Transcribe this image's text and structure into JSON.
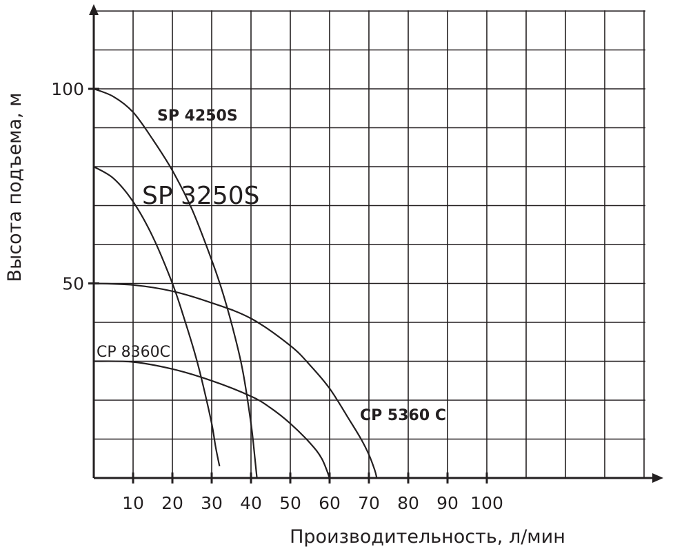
{
  "chart_data": {
    "type": "line",
    "title": "",
    "xlabel": "Производительность, л/мин",
    "ylabel": "Высота подъема, м",
    "xlim": [
      0,
      145
    ],
    "ylim": [
      0,
      120
    ],
    "x_ticks": [
      10,
      20,
      30,
      40,
      50,
      60,
      70,
      80,
      90,
      100
    ],
    "x_tick_labels": [
      "10",
      "20",
      "30",
      "40",
      "50",
      "60",
      "70",
      "80",
      "90",
      "100"
    ],
    "y_ticks": [
      50,
      100
    ],
    "y_tick_labels": [
      "50",
      "100"
    ],
    "grid": true,
    "series": [
      {
        "name": "SP 4250S",
        "label_style": "bold",
        "x": [
          0,
          5,
          10,
          15,
          20,
          25,
          30,
          33,
          36,
          38,
          40,
          41,
          41.5
        ],
        "y": [
          100,
          98,
          94,
          87,
          79,
          69,
          56,
          47,
          36,
          27,
          14,
          5,
          0
        ]
      },
      {
        "name": "SP 3250S",
        "label_style": "large",
        "x": [
          0,
          5,
          10,
          15,
          20,
          23,
          26,
          28,
          30,
          31,
          32
        ],
        "y": [
          80,
          77,
          71,
          62,
          50,
          41,
          31,
          23,
          14,
          8,
          3
        ]
      },
      {
        "name": "CP 5360 C",
        "label_style": "bold",
        "x": [
          0,
          10,
          20,
          30,
          40,
          50,
          55,
          60,
          65,
          68,
          70,
          71.5,
          72
        ],
        "y": [
          50,
          49.6,
          48,
          45,
          41,
          34,
          29,
          23,
          15,
          10,
          6,
          2,
          0
        ]
      },
      {
        "name": "CP 8360C",
        "label_style": "normal",
        "x": [
          0,
          10,
          20,
          30,
          40,
          45,
          50,
          55,
          58,
          60
        ],
        "y": [
          30,
          29.8,
          28,
          25,
          21,
          18,
          14,
          9,
          5,
          0
        ]
      }
    ]
  }
}
